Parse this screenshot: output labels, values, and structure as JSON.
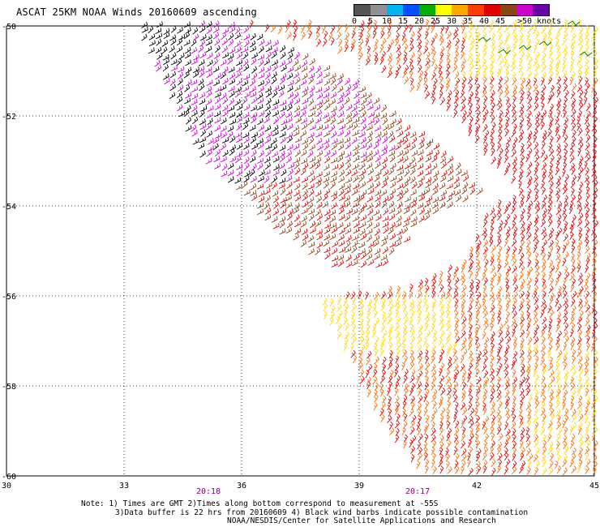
{
  "title": "ASCAT 25KM NOAA Winds 20160609 ascending",
  "legend": {
    "labels": [
      "0",
      "5",
      "10",
      "15",
      "20",
      "25",
      "30",
      "35",
      "40",
      "45",
      ">50 knots"
    ],
    "colors": [
      "#555555",
      "#909090",
      "#00b4f0",
      "#0050ff",
      "#00b000",
      "#ffff00",
      "#ffa800",
      "#ff3c00",
      "#e00000",
      "#8b4513",
      "#d000d0",
      "#6a00a8"
    ]
  },
  "axes": {
    "lat_labels": [
      "-50",
      "-52",
      "-54",
      "-56",
      "-58",
      "-60"
    ],
    "lon_labels": [
      "30",
      "33",
      "36",
      "39",
      "42",
      "45"
    ],
    "lat_range": [
      -60,
      -50
    ],
    "lon_range": [
      30,
      45
    ],
    "grid": "dotted"
  },
  "times": [
    "20:18",
    "20:17"
  ],
  "notes": {
    "line1": "Note: 1) Times are GMT 2)Times along bottom correspond to measurement at -55S",
    "line2": "3)Data buffer is 22 hrs from 20160609 4) Black wind barbs indicate possible contamination",
    "line3": "NOAA/NESDIS/Center for Satellite Applications and Research"
  },
  "colors": {
    "purple": "#d000d0",
    "brown": "#8b4513",
    "black": "#000000",
    "red": "#e00000",
    "orange": "#ff6a00",
    "yellow": "#ffd700",
    "green": "#008000",
    "time_text": "#800080"
  }
}
